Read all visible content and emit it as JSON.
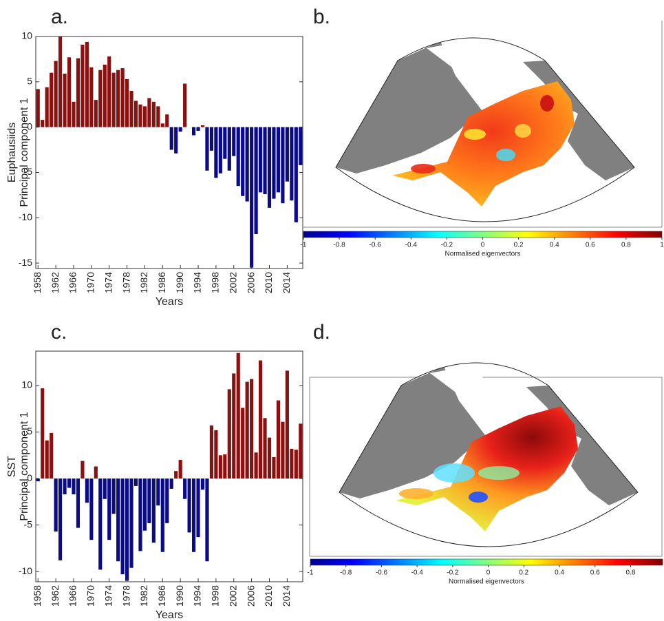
{
  "chart_data": [
    {
      "type": "bar",
      "panel": "a.",
      "ylabel": [
        "Euphausiids",
        "Principal component 1"
      ],
      "xlabel": "Years",
      "x": [
        1958,
        1959,
        1960,
        1961,
        1962,
        1963,
        1964,
        1965,
        1966,
        1967,
        1968,
        1969,
        1970,
        1971,
        1972,
        1973,
        1974,
        1975,
        1976,
        1977,
        1978,
        1979,
        1980,
        1981,
        1982,
        1983,
        1984,
        1985,
        1986,
        1987,
        1988,
        1989,
        1990,
        1991,
        1992,
        1993,
        1994,
        1995,
        1996,
        1997,
        1998,
        1999,
        2000,
        2001,
        2002,
        2003,
        2004,
        2005,
        2006,
        2007,
        2008,
        2009,
        2010,
        2011,
        2012,
        2013,
        2014,
        2015,
        2016,
        2017
      ],
      "values": [
        4.2,
        0.8,
        4.4,
        6.0,
        7.3,
        10,
        5.9,
        7.7,
        2.8,
        7.6,
        9.1,
        9.4,
        6.6,
        3.0,
        6.3,
        6.9,
        7.8,
        6.0,
        6.3,
        6.5,
        5.3,
        4.0,
        2.9,
        2.5,
        2.3,
        3.2,
        2.8,
        2.3,
        0.4,
        1.4,
        -2.5,
        -2.9,
        -0.5,
        4.8,
        0,
        -0.9,
        -0.4,
        0.2,
        -4.8,
        -2.6,
        -5.6,
        -5.1,
        -3.5,
        -4.8,
        -3.2,
        -6.5,
        -7.6,
        -8.2,
        -15.5,
        -11.8,
        -7.2,
        -7.4,
        -8.9,
        -7.9,
        -7.2,
        -8.4,
        -6.0,
        -8.1,
        -10.5,
        -4.2
      ],
      "positive_color": "#8b1010",
      "negative_color": "#0b0b88",
      "xlim": [
        1957.5,
        2017.5
      ],
      "xticks": [
        1958,
        1962,
        1966,
        1970,
        1974,
        1978,
        1982,
        1986,
        1990,
        1994,
        1998,
        2002,
        2006,
        2010,
        2014
      ],
      "ylim": [
        -15.6,
        10
      ],
      "yticks": [
        -15,
        -10,
        -5,
        0,
        5,
        10
      ]
    },
    {
      "type": "map",
      "panel": "b.",
      "colorbar": {
        "label": "Normalised eigenvectors",
        "lim": [
          -1,
          1
        ],
        "ticks": [
          -1,
          -0.8,
          -0.6,
          -0.4,
          -0.2,
          0,
          0.2,
          0.4,
          0.6,
          0.8,
          1
        ]
      }
    },
    {
      "type": "bar",
      "panel": "c.",
      "ylabel": [
        "SST",
        "Principal component 1"
      ],
      "xlabel": "Years",
      "x": [
        1958,
        1959,
        1960,
        1961,
        1962,
        1963,
        1964,
        1965,
        1966,
        1967,
        1968,
        1969,
        1970,
        1971,
        1972,
        1973,
        1974,
        1975,
        1976,
        1977,
        1978,
        1979,
        1980,
        1981,
        1982,
        1983,
        1984,
        1985,
        1986,
        1987,
        1988,
        1989,
        1990,
        1991,
        1992,
        1993,
        1994,
        1995,
        1996,
        1997,
        1998,
        1999,
        2000,
        2001,
        2002,
        2003,
        2004,
        2005,
        2006,
        2007,
        2008,
        2009,
        2010,
        2011,
        2012,
        2013,
        2014,
        2015,
        2016,
        2017
      ],
      "values": [
        -0.3,
        9.7,
        4.1,
        4.9,
        -5.7,
        -8.8,
        -1.7,
        -1.0,
        -1.7,
        -5.3,
        1.9,
        -2.6,
        -6.6,
        1.3,
        -9.8,
        -2.2,
        -6.6,
        -3.8,
        -8.9,
        -10.3,
        -11,
        -9.6,
        -0.8,
        -7.8,
        -5.6,
        -4.8,
        -6.9,
        -2.9,
        -7.9,
        -4.8,
        -1.1,
        0.8,
        2.0,
        -2.2,
        -5.8,
        -7.9,
        -6.3,
        -1.2,
        -8.9,
        5.7,
        5.2,
        2.5,
        2.6,
        9.6,
        11.3,
        13.5,
        7.6,
        10.4,
        10.7,
        2.8,
        12.7,
        6.5,
        4.4,
        2.3,
        8.4,
        6.1,
        11.6,
        3.2,
        3.1,
        5.9
      ],
      "positive_color": "#8b1010",
      "negative_color": "#0b0b88",
      "xlim": [
        1957.5,
        2017.5
      ],
      "xticks": [
        1958,
        1962,
        1966,
        1970,
        1974,
        1978,
        1982,
        1986,
        1990,
        1994,
        1998,
        2002,
        2006,
        2010,
        2014
      ],
      "ylim": [
        -11.1,
        13.7
      ],
      "yticks": [
        -10,
        -5,
        0,
        5,
        10
      ]
    },
    {
      "type": "map",
      "panel": "d.",
      "colorbar": {
        "label": "Normalised eigenvectors",
        "lim": [
          -1,
          0.98
        ],
        "ticks": [
          -1,
          -0.8,
          -0.6,
          -0.4,
          -0.2,
          0,
          0.2,
          0.4,
          0.6,
          0.8
        ]
      }
    }
  ]
}
